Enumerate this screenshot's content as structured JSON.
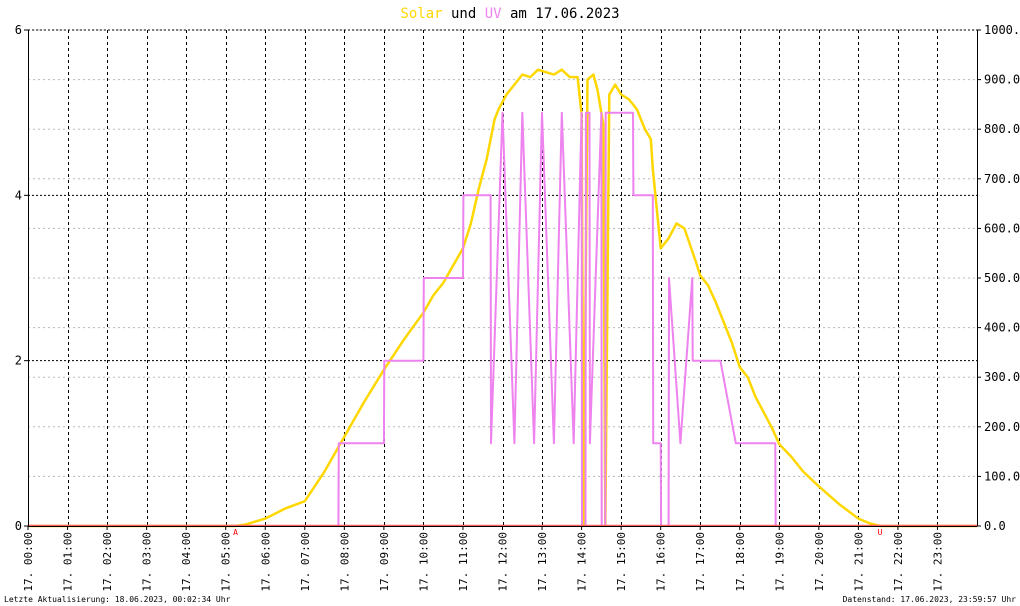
{
  "title": {
    "part1": "Solar",
    "part2": " und ",
    "part3": "UV",
    "part4": " am 17.06.2023"
  },
  "colors": {
    "solar": "#ffd700",
    "uv": "#ee82ee",
    "zero_line": "#ff6060",
    "marker": "#ff0000",
    "grid": "#000000",
    "title_text": "#000000"
  },
  "footer": {
    "left": "Letzte Aktualisierung: 18.06.2023, 00:02:34 Uhr",
    "right": "Datenstand: 17.06.2023, 23:59:57 Uhr"
  },
  "chart_data": {
    "type": "line",
    "title": "Solar und UV am 17.06.2023",
    "xlim": [
      0,
      24
    ],
    "x_tick_labels": [
      "17. 00:00",
      "17. 01:00",
      "17. 02:00",
      "17. 03:00",
      "17. 04:00",
      "17. 05:00",
      "17. 06:00",
      "17. 07:00",
      "17. 08:00",
      "17. 09:00",
      "17. 10:00",
      "17. 11:00",
      "17. 12:00",
      "17. 13:00",
      "17. 14:00",
      "17. 15:00",
      "17. 16:00",
      "17. 17:00",
      "17. 18:00",
      "17. 19:00",
      "17. 20:00",
      "17. 21:00",
      "17. 22:00",
      "17. 23:00"
    ],
    "y_left": {
      "lim": [
        0,
        6
      ],
      "ticks": [
        "0",
        "2",
        "4",
        "6"
      ]
    },
    "y_right": {
      "lim": [
        0,
        1000
      ],
      "ticks": [
        "0.0",
        "100.0",
        "200.0",
        "300.0",
        "400.0",
        "500.0",
        "600.0",
        "700.0",
        "800.0",
        "900.0",
        "1000.0"
      ]
    },
    "markers": [
      {
        "label": "A",
        "x": 5.25
      },
      {
        "label": "U",
        "x": 21.55
      }
    ],
    "grid": true,
    "series": [
      {
        "axis": "right",
        "x": [
          0,
          5.25,
          5.5,
          6,
          6.5,
          7,
          7.5,
          8,
          8.5,
          9,
          9.5,
          10,
          10.25,
          10.5,
          11,
          11.2,
          11.4,
          11.6,
          11.8,
          11.9,
          12.1,
          12.3,
          12.5,
          12.7,
          12.9,
          13.1,
          13.3,
          13.5,
          13.7,
          13.9,
          14.0,
          14.05,
          14.15,
          14.3,
          14.4,
          14.55,
          14.6,
          14.7,
          14.85,
          15,
          15.2,
          15.4,
          15.6,
          15.75,
          15.8,
          16,
          16.2,
          16.4,
          16.6,
          16.9,
          17,
          17.2,
          17.4,
          17.6,
          17.8,
          18,
          18.2,
          18.4,
          18.6,
          18.8,
          19,
          19.3,
          19.6,
          20,
          20.5,
          21,
          21.3,
          21.55,
          22,
          24
        ],
        "values": [
          0,
          0,
          3,
          15,
          35,
          50,
          110,
          180,
          250,
          315,
          375,
          430,
          465,
          490,
          560,
          610,
          680,
          740,
          820,
          840,
          870,
          890,
          910,
          905,
          920,
          915,
          910,
          920,
          905,
          905,
          830,
          0,
          900,
          910,
          880,
          810,
          0,
          870,
          890,
          870,
          860,
          840,
          800,
          780,
          720,
          560,
          580,
          610,
          600,
          530,
          505,
          485,
          450,
          410,
          370,
          320,
          300,
          260,
          230,
          200,
          165,
          140,
          110,
          80,
          45,
          15,
          5,
          0,
          0,
          0
        ]
      },
      {
        "axis": "right",
        "x": [
          0,
          7.85,
          7.86,
          9.0,
          9.01,
          10.0,
          10.01,
          11.0,
          11.01,
          11.7,
          11.71,
          12.0,
          12.3,
          12.5,
          12.8,
          13.0,
          13.3,
          13.5,
          13.8,
          14.0,
          14.01,
          14.1,
          14.11,
          14.2,
          14.21,
          14.5,
          14.51,
          14.6,
          14.61,
          14.7,
          14.71,
          15.3,
          15.31,
          15.8,
          15.81,
          16.0,
          16.01,
          16.2,
          16.21,
          16.5,
          16.8,
          16.81,
          17.5,
          17.51,
          17.9,
          17.91,
          18.9,
          18.91,
          24
        ],
        "values": [
          0,
          0,
          167,
          167,
          333,
          333,
          500,
          500,
          667,
          667,
          167,
          833,
          167,
          833,
          167,
          833,
          167,
          833,
          167,
          833,
          0,
          0,
          833,
          833,
          167,
          833,
          0,
          0,
          833,
          833,
          833,
          833,
          667,
          667,
          167,
          167,
          0,
          0,
          500,
          167,
          500,
          333,
          333,
          333,
          167,
          167,
          167,
          0,
          0
        ]
      }
    ]
  }
}
